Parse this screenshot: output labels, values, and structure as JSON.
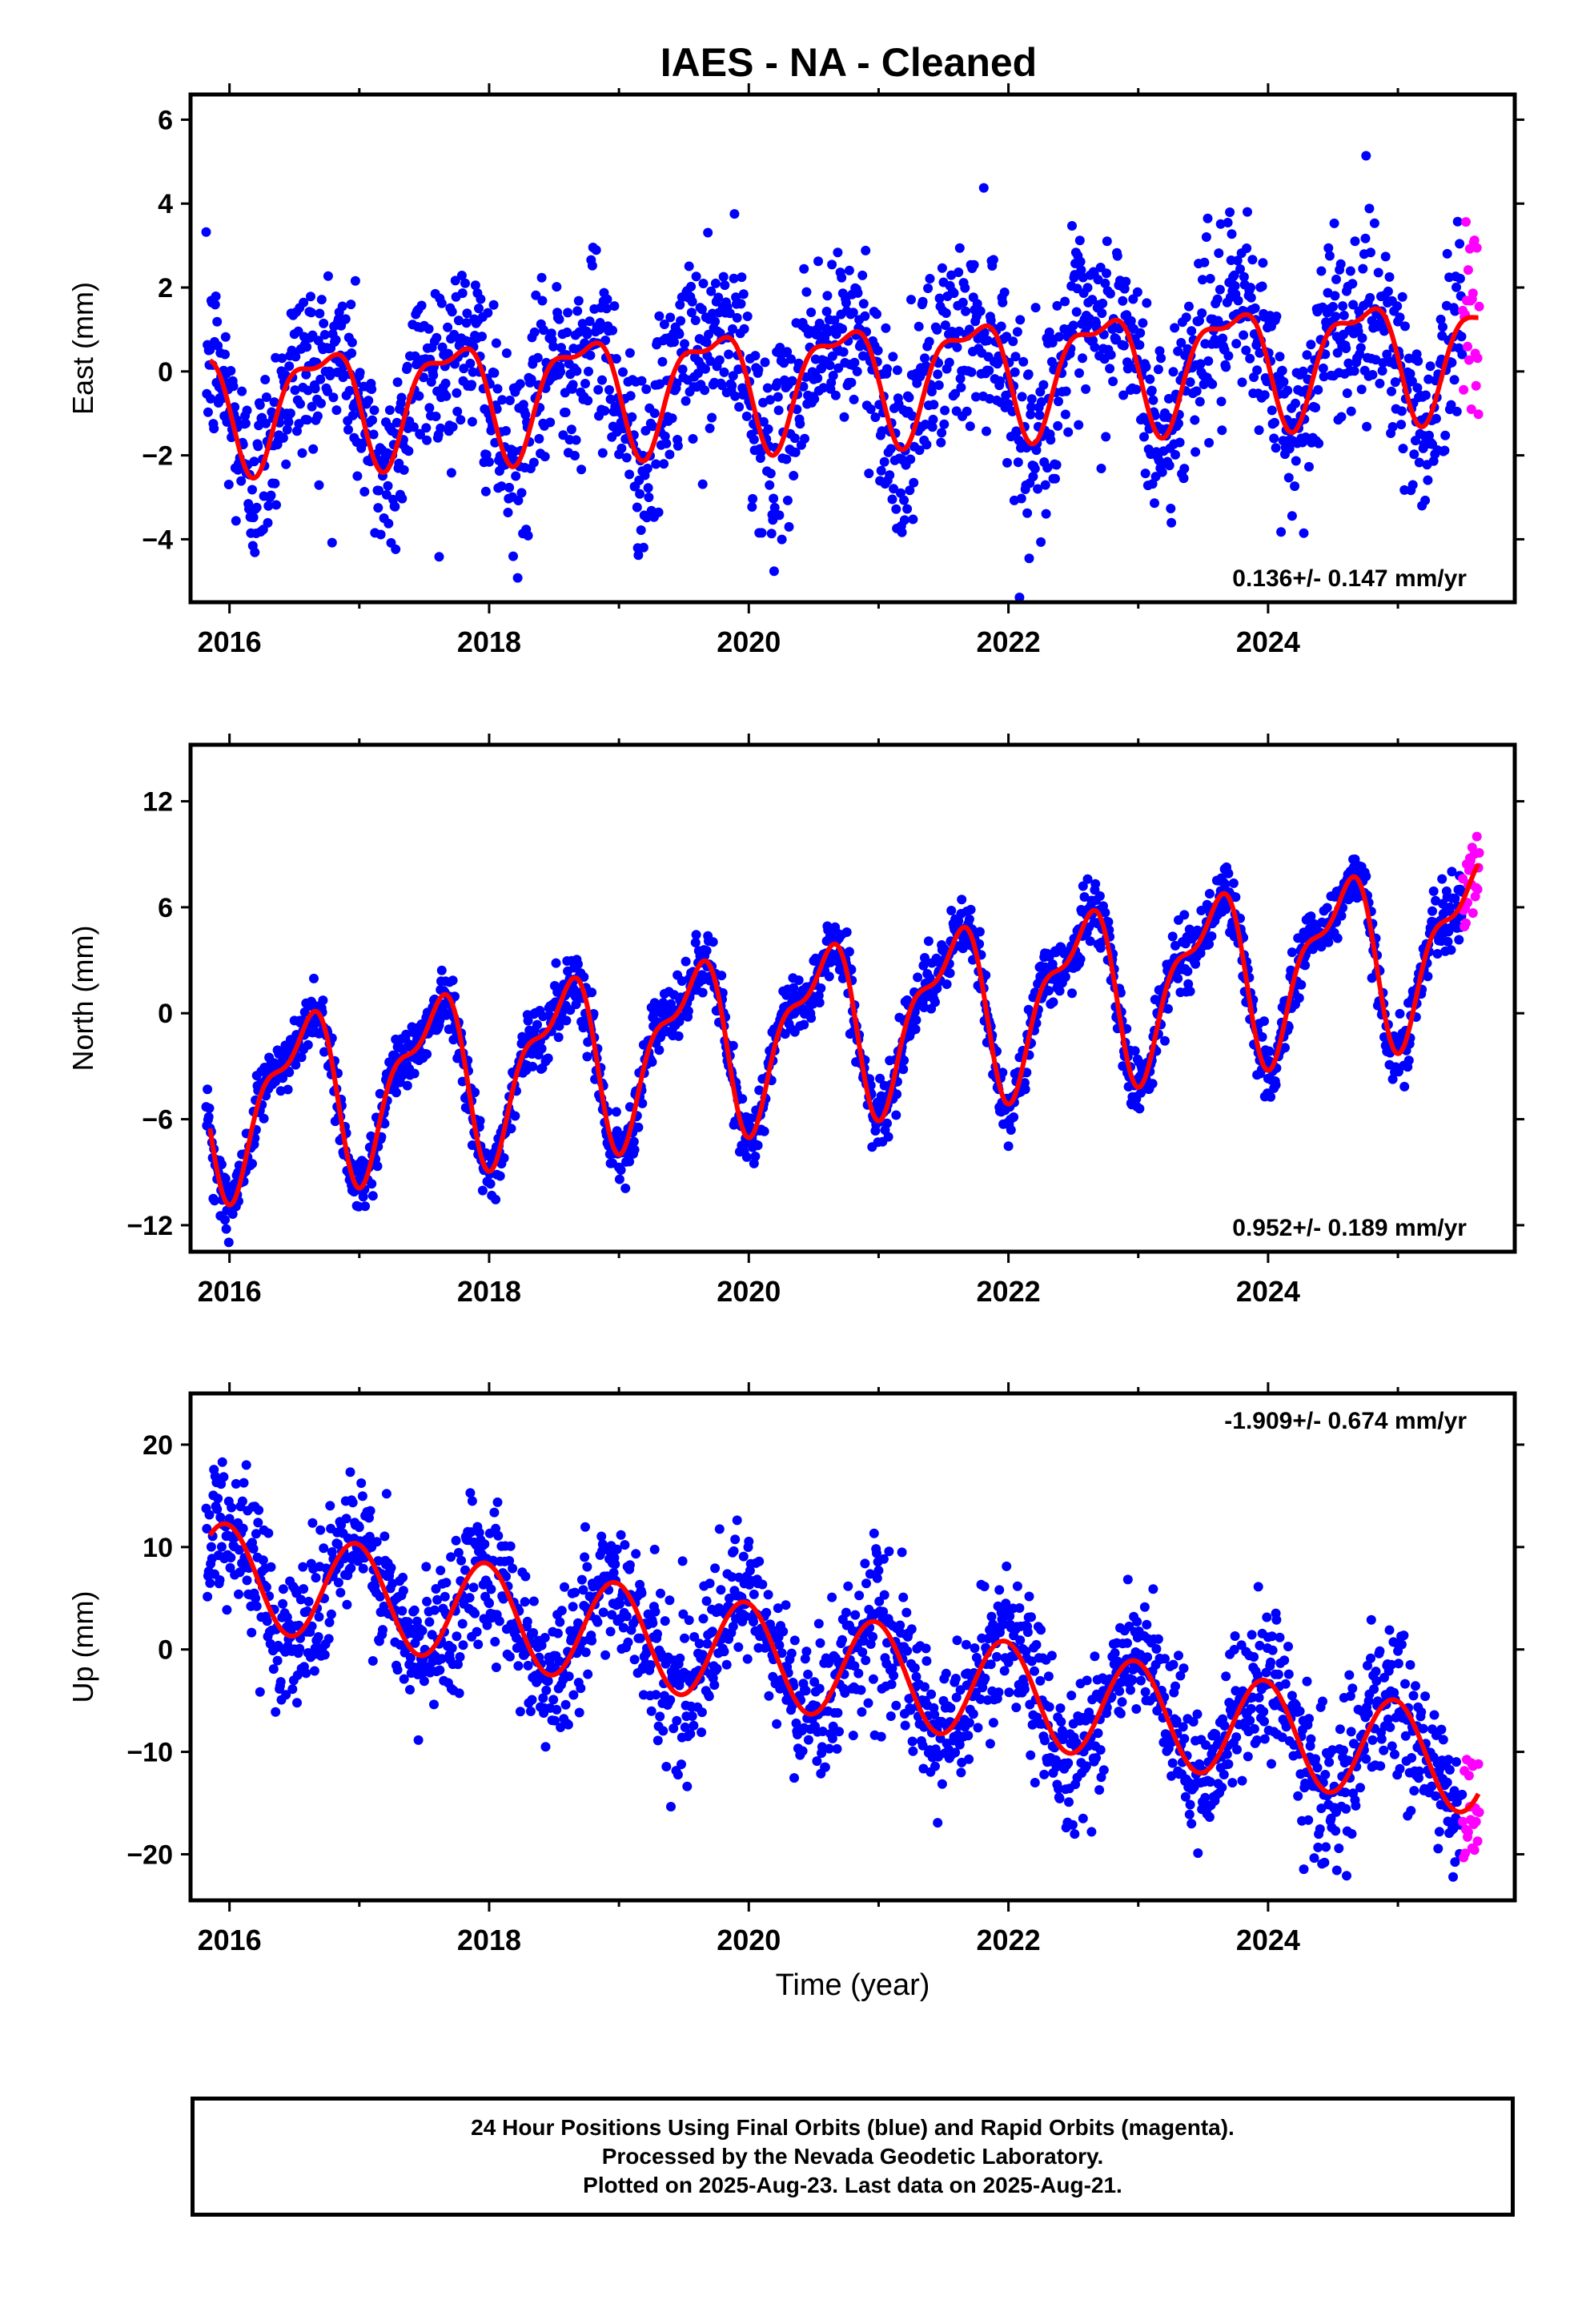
{
  "title": "IAES  - NA - Cleaned",
  "colors": {
    "final": "#0000ff",
    "rapid": "#ff00ff",
    "fit": "#ff0000",
    "axis": "#000000"
  },
  "chart_data": [
    {
      "type": "scatter",
      "ylabel": "East (mm)",
      "xlim": [
        2015.7,
        2025.9
      ],
      "ylim": [
        -5.5,
        6.6
      ],
      "yticks": [
        -4,
        -2,
        0,
        2,
        4,
        6
      ],
      "xticks": [
        2016,
        2018,
        2020,
        2022,
        2024
      ],
      "annotation": "0.136+/- 0.147 mm/yr",
      "annotation_pos": "bottom-right",
      "fit": {
        "start": 2015.85,
        "end": 2025.62,
        "trend": 0.136,
        "offset": -0.8,
        "amp1": 1.3,
        "phase1": 0.45,
        "amp2": 0.5,
        "phase2": 0.3
      },
      "noise": 1.1,
      "series": [
        {
          "kind": "final",
          "start": 2015.82,
          "end": 2025.5,
          "step": 0.005
        },
        {
          "kind": "rapid",
          "start": 2025.5,
          "end": 2025.63,
          "step": 0.006,
          "spread": 2.4
        }
      ]
    },
    {
      "type": "scatter",
      "ylabel": "North (mm)",
      "xlim": [
        2015.7,
        2025.9
      ],
      "ylim": [
        -13.5,
        15.2
      ],
      "yticks": [
        -12,
        -6,
        0,
        6,
        12
      ],
      "xticks": [
        2016,
        2018,
        2020,
        2022,
        2024
      ],
      "annotation": "0.952+/- 0.189 mm/yr",
      "annotation_pos": "bottom-right",
      "fit": {
        "start": 2015.85,
        "end": 2025.62,
        "trend": 0.952,
        "offset": -5.2,
        "amp1": 4.3,
        "phase1": 0.3,
        "amp2": 1.8,
        "phase2": 0.1
      },
      "noise": 0.9,
      "series": [
        {
          "kind": "final",
          "start": 2015.82,
          "end": 2025.5,
          "step": 0.005
        },
        {
          "kind": "rapid",
          "start": 2025.5,
          "end": 2025.63,
          "step": 0.006,
          "spread": 2.5
        }
      ]
    },
    {
      "type": "scatter",
      "ylabel": "Up (mm)",
      "xlim": [
        2015.7,
        2025.9
      ],
      "ylim": [
        -24.5,
        25
      ],
      "yticks": [
        -20,
        -10,
        0,
        10,
        20
      ],
      "xticks": [
        2016,
        2018,
        2020,
        2022,
        2024
      ],
      "xlabel": "Time (year)",
      "annotation": "-1.909+/- 0.674 mm/yr",
      "annotation_pos": "top-right",
      "fit": {
        "start": 2015.85,
        "end": 2025.62,
        "trend": -1.909,
        "offset": 7.5,
        "amp1": 5.0,
        "phase1": 0.72,
        "amp2": 0.0,
        "phase2": 0.0
      },
      "noise": 3.6,
      "series": [
        {
          "kind": "final",
          "start": 2015.82,
          "end": 2025.5,
          "step": 0.005
        },
        {
          "kind": "rapid",
          "start": 2025.5,
          "end": 2025.63,
          "step": 0.006,
          "spread": 5.0
        }
      ]
    }
  ],
  "footer": {
    "line1": "24 Hour Positions Using Final Orbits (blue) and Rapid Orbits (magenta).",
    "line2": "Processed by the Nevada Geodetic Laboratory.",
    "line3": "Plotted on 2025-Aug-23. Last data on 2025-Aug-21."
  }
}
